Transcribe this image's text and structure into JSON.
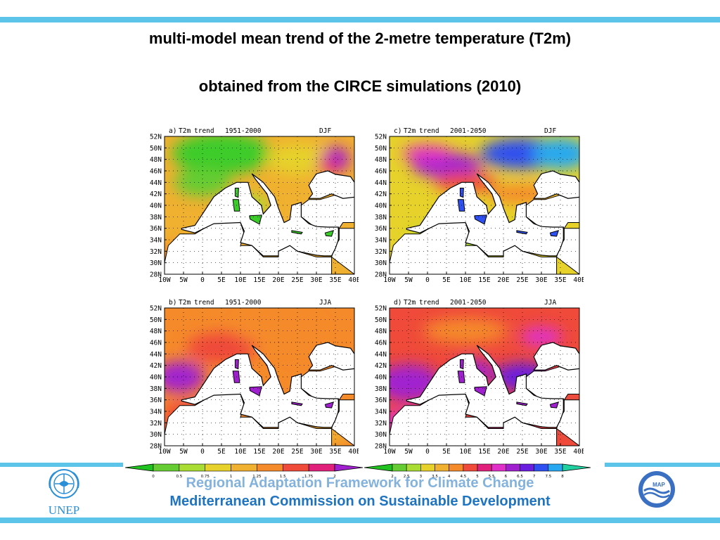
{
  "title_line1": "multi-model mean trend of the 2-metre temperature (T2m)",
  "title_line2": "obtained from the CIRCE simulations (2010)",
  "lat_labels": [
    "52N",
    "50N",
    "48N",
    "46N",
    "44N",
    "42N",
    "40N",
    "38N",
    "36N",
    "34N",
    "32N",
    "30N",
    "28N"
  ],
  "lon_labels": [
    "10W",
    "5W",
    "0",
    "5E",
    "10E",
    "15E",
    "20E",
    "25E",
    "30E",
    "35E",
    "40E"
  ],
  "panels": [
    {
      "label": "a)",
      "var": "T2m",
      "word": "trend",
      "period": "1951-2000",
      "season": "DJF"
    },
    {
      "label": "c)",
      "var": "T2m",
      "word": "trend",
      "period": "2001-2050",
      "season": "DJF"
    },
    {
      "label": "b)",
      "var": "T2m",
      "word": "trend",
      "period": "1951-2000",
      "season": "JJA"
    },
    {
      "label": "d)",
      "var": "T2m",
      "word": "trend",
      "period": "2001-2050",
      "season": "JJA"
    }
  ],
  "colorbar_left": {
    "labels": [
      "0",
      "0.5",
      "0.75",
      "1",
      "1.25",
      "1.5",
      "1.75",
      "2"
    ],
    "colors": [
      "#1fc21f",
      "#66cc33",
      "#aadd33",
      "#e6d22a",
      "#f0b030",
      "#f58a2a",
      "#ef4a3a",
      "#e0207a",
      "#a020d0"
    ]
  },
  "colorbar_right": {
    "labels": [
      "2",
      "2.5",
      "3",
      "3.5",
      "4",
      "4.5",
      "5",
      "5.5",
      "6",
      "6.5",
      "7",
      "7.5",
      "8"
    ],
    "colors": [
      "#1fc21f",
      "#66cc33",
      "#aadd33",
      "#e6d22a",
      "#f0b030",
      "#f58a2a",
      "#ef4a3a",
      "#e0207a",
      "#e030c8",
      "#a020d0",
      "#6a1ee0",
      "#2f50f0",
      "#28a8f0",
      "#20d0a0"
    ]
  },
  "footer": {
    "line1": "Regional Adaptation Framework for Climate Change",
    "line2": "Mediterranean Commission on Sustainable Development"
  },
  "logos": {
    "left_text": "UNEP",
    "right_text": "MAP"
  },
  "colors": {
    "stripe": "#5bc4e8",
    "footer_text": "#1f74c2",
    "land": "#ffffff",
    "coast": "#000000"
  }
}
